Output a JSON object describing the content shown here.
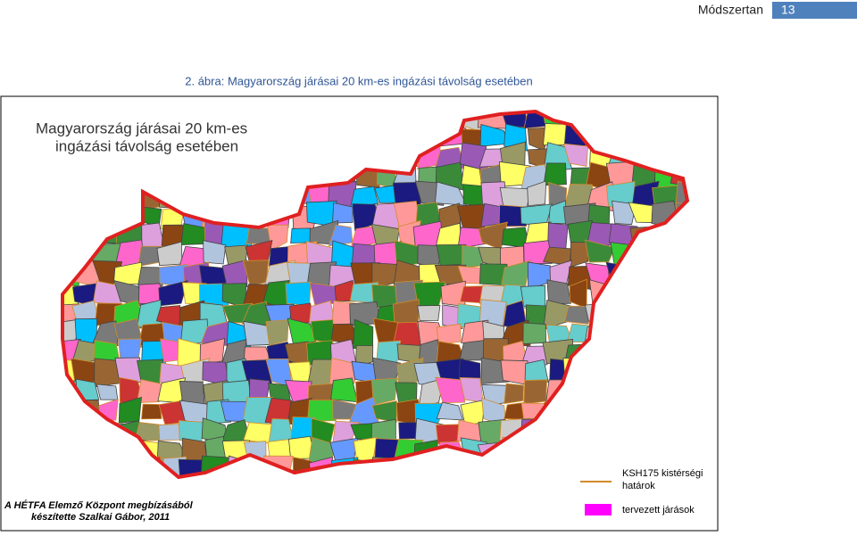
{
  "header": {
    "section": "Módszertan",
    "page": "13"
  },
  "figure": {
    "caption": "2. ábra: Magyarország járásai 20 km-es ingázási távolság esetében"
  },
  "map": {
    "title_lines": [
      "Magyarország járásai 20 km-es",
      "ingázási távolság esetében"
    ],
    "legend": [
      {
        "label_lines": [
          "KSH175 kistérségi",
          "határok"
        ]
      },
      {
        "label_lines": [
          "tervezett járások"
        ]
      }
    ],
    "credit_lines": [
      "A HÉTFA Elemző Központ megbízásából",
      "készítette Szalkai Gábor, 2011"
    ]
  }
}
